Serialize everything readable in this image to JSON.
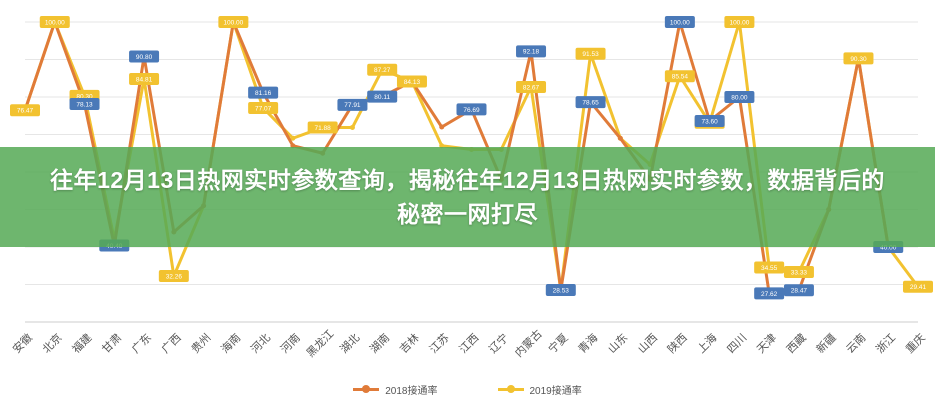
{
  "banner": {
    "title": "往年12月13日热网实时参数查询，揭秘往年12月13日热网实时参数，数据背后的秘密一网打尽"
  },
  "colors": {
    "series_2018": "#e07b39",
    "series_2019": "#f2c230",
    "label_2018_bg": "#4a79b8",
    "label_2019_bg": "#f2c230",
    "grid": "#e6e6e6"
  },
  "chart_data": {
    "type": "line",
    "title": "",
    "xlabel": "",
    "ylabel": "",
    "ylim": [
      20,
      100
    ],
    "grid": true,
    "legend_position": "bottom",
    "categories": [
      "安徽",
      "北京",
      "福建",
      "甘肃",
      "广东",
      "广西",
      "贵州",
      "海南",
      "河北",
      "河南",
      "黑龙江",
      "湖北",
      "湖南",
      "吉林",
      "江苏",
      "江西",
      "辽宁",
      "内蒙古",
      "宁夏",
      "青海",
      "山东",
      "山西",
      "陕西",
      "上海",
      "四川",
      "天津",
      "西藏",
      "新疆",
      "云南",
      "浙江",
      "重庆"
    ],
    "series": [
      {
        "name": "2018接通率",
        "values": [
          76.47,
          100.0,
          78.13,
          40.4,
          90.8,
          44.0,
          51.0,
          100.0,
          81.16,
          67.0,
          65.0,
          77.91,
          80.11,
          84.13,
          72.0,
          76.69,
          58.0,
          92.18,
          28.53,
          78.65,
          69.0,
          58.0,
          100.0,
          73.6,
          80.0,
          27.62,
          28.47,
          50.0,
          90.3,
          40.0,
          null
        ],
        "labels": [
          "",
          "",
          "78.13",
          "40.40",
          "90.80",
          "",
          "",
          "",
          "81.16",
          "",
          "",
          "77.91",
          "80.11",
          "",
          "",
          "76.69",
          "",
          "92.18",
          "28.53",
          "78.65",
          "",
          "",
          "100.00",
          "73.60",
          "80.00",
          "27.62",
          "28.47",
          "",
          "",
          "40.00",
          ""
        ]
      },
      {
        "name": "2019接通率",
        "values": [
          76.47,
          100.0,
          80.3,
          42.0,
          84.81,
          32.26,
          51.0,
          100.0,
          77.07,
          69.0,
          71.88,
          71.88,
          87.27,
          84.13,
          67.0,
          66.0,
          66.0,
          82.67,
          28.53,
          91.53,
          69.0,
          62.0,
          85.54,
          73.13,
          100.0,
          34.55,
          33.33,
          50.0,
          90.3,
          40.0,
          29.41
        ],
        "labels": [
          "76.47",
          "100.00",
          "80.30",
          "",
          "84.81",
          "32.26",
          "",
          "100.00",
          "77.07",
          "",
          "71.88",
          "",
          "87.27",
          "84.13",
          "",
          "",
          "",
          "82.67",
          "",
          "91.53",
          "",
          "",
          "85.54",
          "73.13",
          "100.00",
          "34.55",
          "33.33",
          "",
          "90.30",
          "",
          "29.41"
        ]
      }
    ]
  }
}
